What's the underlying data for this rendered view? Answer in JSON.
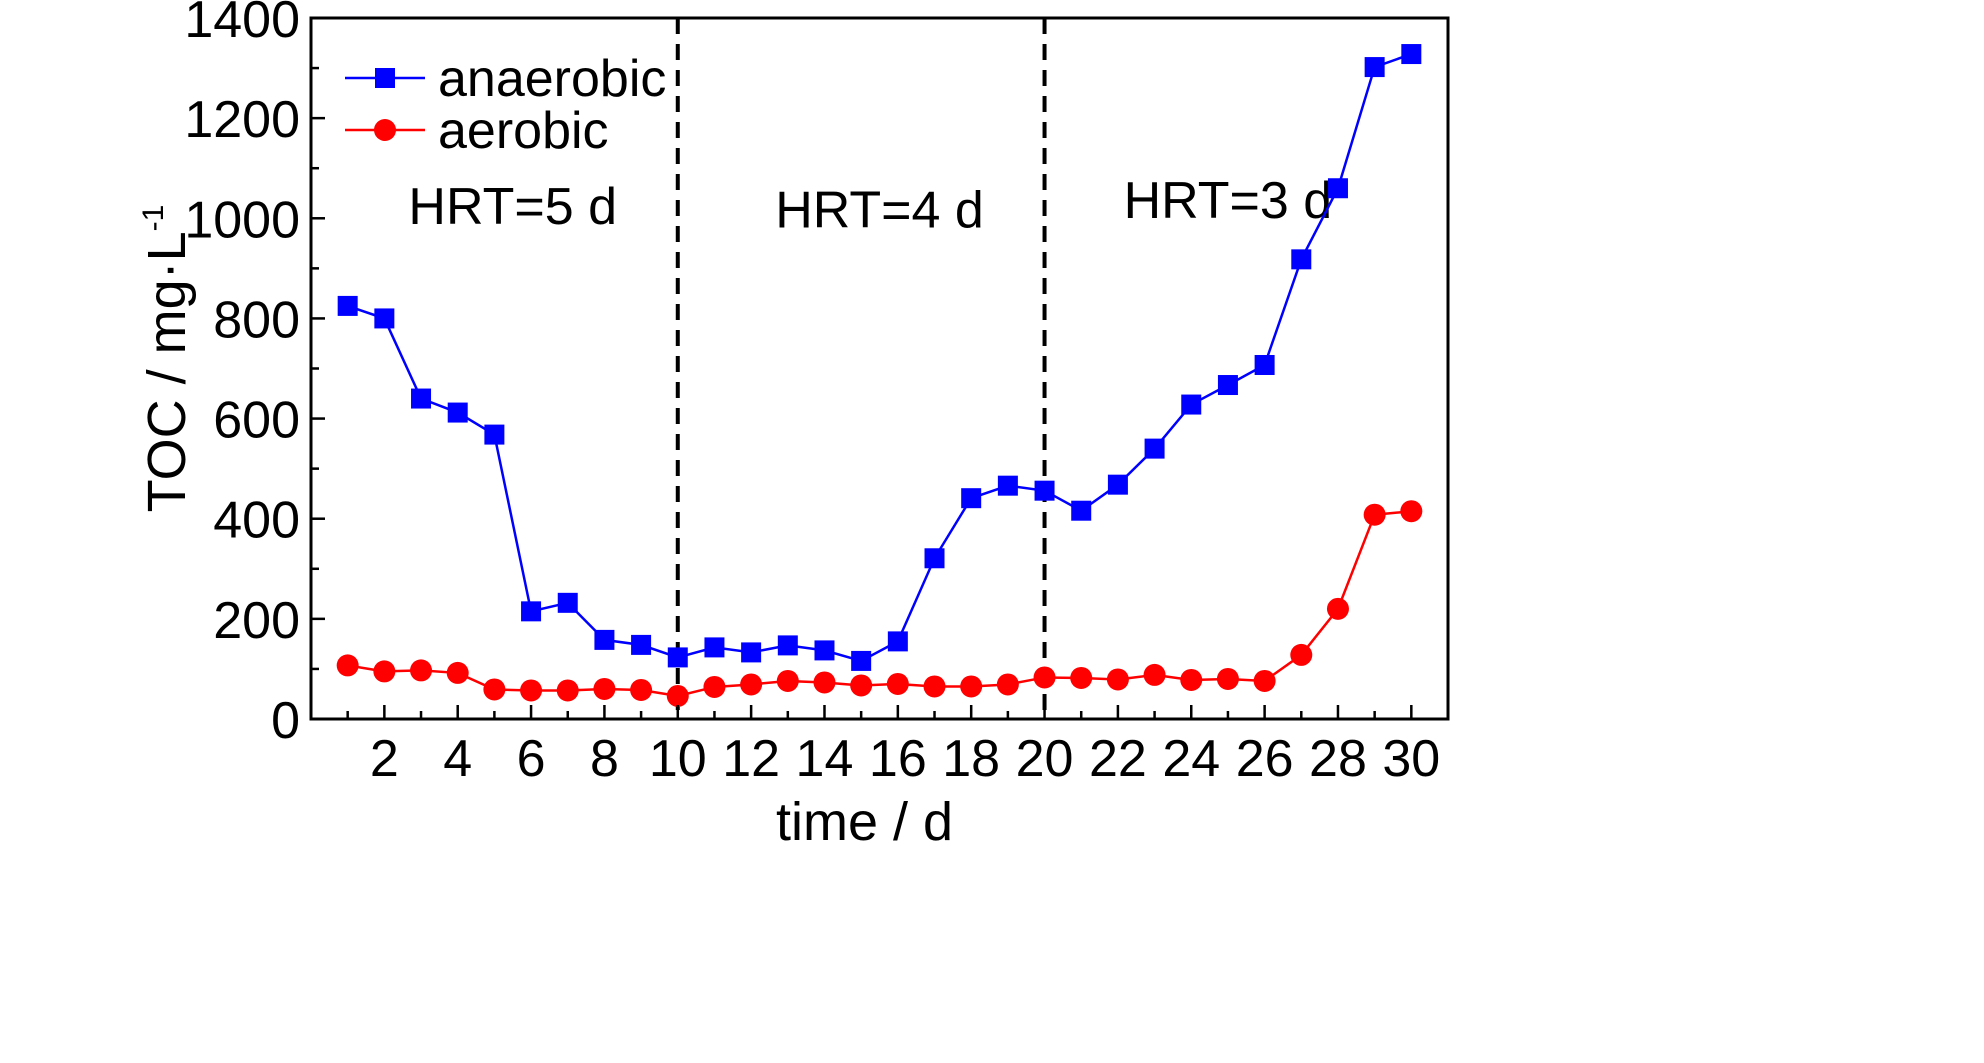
{
  "chart_data": {
    "type": "line",
    "xlabel": "time / d",
    "ylabel": "TOC / mg·L",
    "ylabel_superscript": "-1",
    "xlim": [
      0,
      31
    ],
    "ylim": [
      0,
      1400
    ],
    "xticks": [
      2,
      4,
      6,
      8,
      10,
      12,
      14,
      16,
      18,
      20,
      22,
      24,
      26,
      28,
      30
    ],
    "xtick_labels": [
      "2",
      "4",
      "6",
      "8",
      "10",
      "12",
      "14",
      "16",
      "18",
      "20",
      "22",
      "24",
      "26",
      "28",
      "30"
    ],
    "yticks": [
      0,
      200,
      400,
      600,
      800,
      1000,
      1200,
      1400
    ],
    "ytick_labels": [
      "0",
      "200",
      "400",
      "600",
      "800",
      "1000",
      "1200",
      "1400"
    ],
    "grid": false,
    "legend_position": "top-left",
    "x": [
      1,
      2,
      3,
      4,
      5,
      6,
      7,
      8,
      9,
      10,
      11,
      12,
      13,
      14,
      15,
      16,
      17,
      18,
      19,
      20,
      21,
      22,
      23,
      24,
      25,
      26,
      27,
      28,
      29,
      30
    ],
    "series": [
      {
        "name": "anaerobic",
        "color": "#0000ff",
        "marker": "square",
        "values": [
          825,
          800,
          640,
          612,
          568,
          215,
          232,
          158,
          148,
          123,
          143,
          133,
          147,
          137,
          116,
          155,
          321,
          441,
          466,
          456,
          416,
          468,
          540,
          628,
          667,
          707,
          918,
          1060,
          1302,
          1328
        ]
      },
      {
        "name": "aerobic",
        "color": "#ff0000",
        "marker": "circle",
        "values": [
          107,
          95,
          97,
          92,
          59,
          57,
          57,
          60,
          58,
          46,
          64,
          69,
          76,
          73,
          67,
          70,
          65,
          65,
          69,
          83,
          82,
          79,
          88,
          78,
          80,
          76,
          128,
          220,
          408,
          415
        ]
      }
    ],
    "dividers": [
      10,
      20
    ],
    "annotations": [
      {
        "text": "HRT=5 d",
        "x": 5.5,
        "y": 1025
      },
      {
        "text": "HRT=4 d",
        "x": 15.5,
        "y": 1018
      },
      {
        "text": "HRT=3 d",
        "x": 25,
        "y": 1037
      }
    ]
  }
}
